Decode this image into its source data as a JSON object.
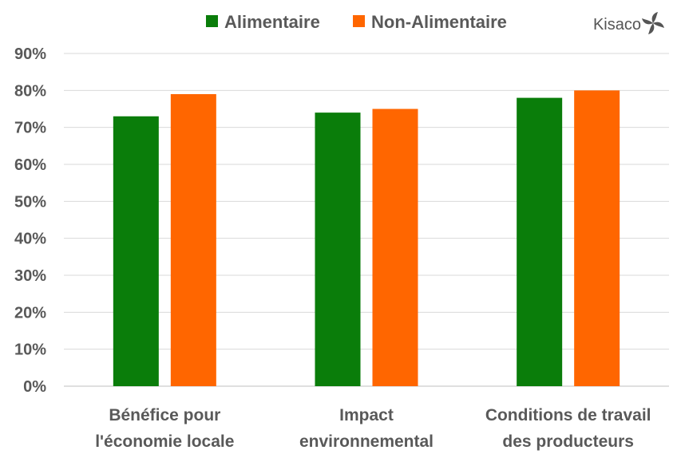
{
  "brand": {
    "name": "Kisaco",
    "logo_icon": "pinwheel-icon"
  },
  "chart_data": {
    "type": "bar",
    "categories": [
      [
        "Bénéfice pour",
        "l'économie locale"
      ],
      [
        "Impact",
        "environnemental"
      ],
      [
        "Conditions de travail",
        "des producteurs"
      ]
    ],
    "series": [
      {
        "name": "Alimentaire",
        "color": "#0a7d0a",
        "values": [
          73,
          74,
          78
        ]
      },
      {
        "name": "Non-Alimentaire",
        "color": "#ff6600",
        "values": [
          79,
          75,
          80
        ]
      }
    ],
    "ylim": [
      0,
      90
    ],
    "yticks": [
      0,
      10,
      20,
      30,
      40,
      50,
      60,
      70,
      80,
      90
    ],
    "ytick_labels": [
      "0%",
      "10%",
      "20%",
      "30%",
      "40%",
      "50%",
      "60%",
      "70%",
      "80%",
      "90%"
    ],
    "grid": true,
    "legend": "top-center",
    "title": "",
    "xlabel": "",
    "ylabel": ""
  }
}
